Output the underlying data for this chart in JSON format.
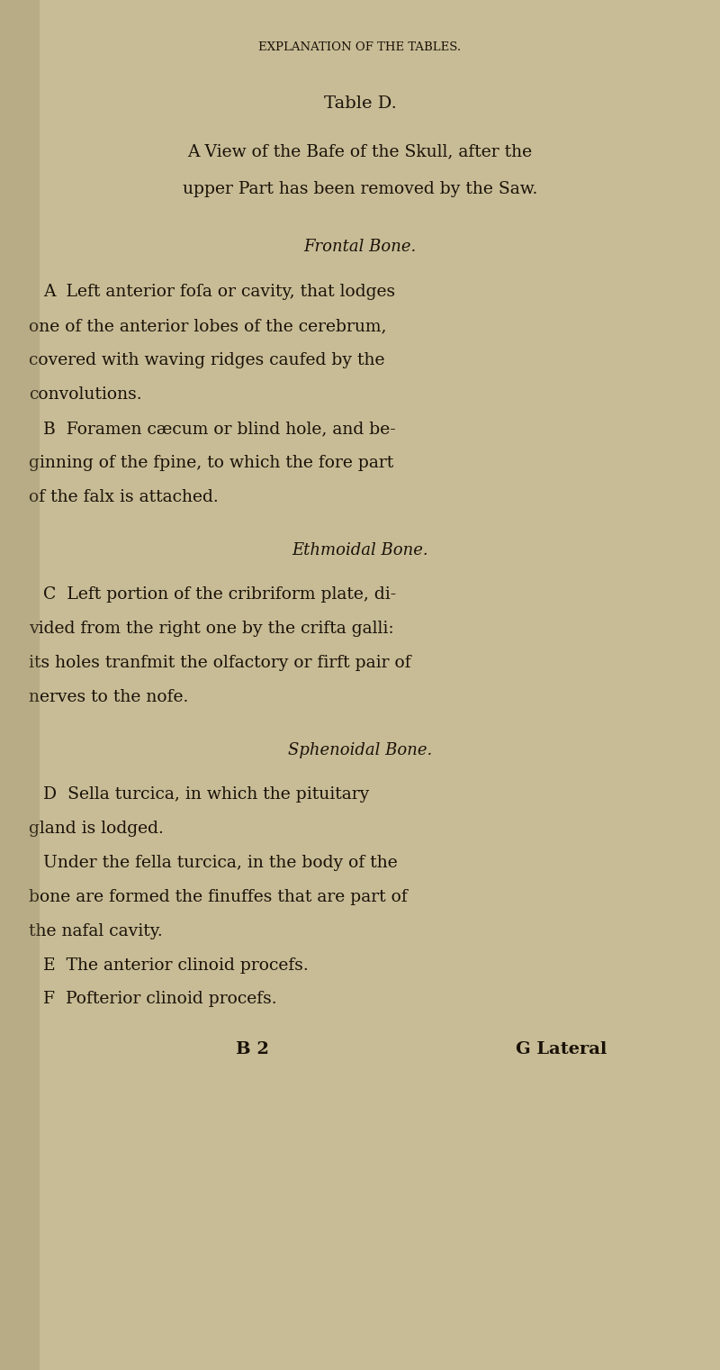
{
  "bg_color": "#c8bc96",
  "text_color": "#1a1208",
  "page_width": 8.0,
  "page_height": 15.21,
  "header": "EXPLANATION OF THE TABLES.",
  "title": "Table D.",
  "sections": [
    {
      "heading": "Frontal Bone.",
      "heading_style": "italic"
    },
    {
      "heading": "Ethmoidal Bone.",
      "heading_style": "italic"
    },
    {
      "heading": "Sphenoidal Bone.",
      "heading_style": "italic"
    }
  ],
  "footer_left": "B 2",
  "footer_right": "G Lateral"
}
